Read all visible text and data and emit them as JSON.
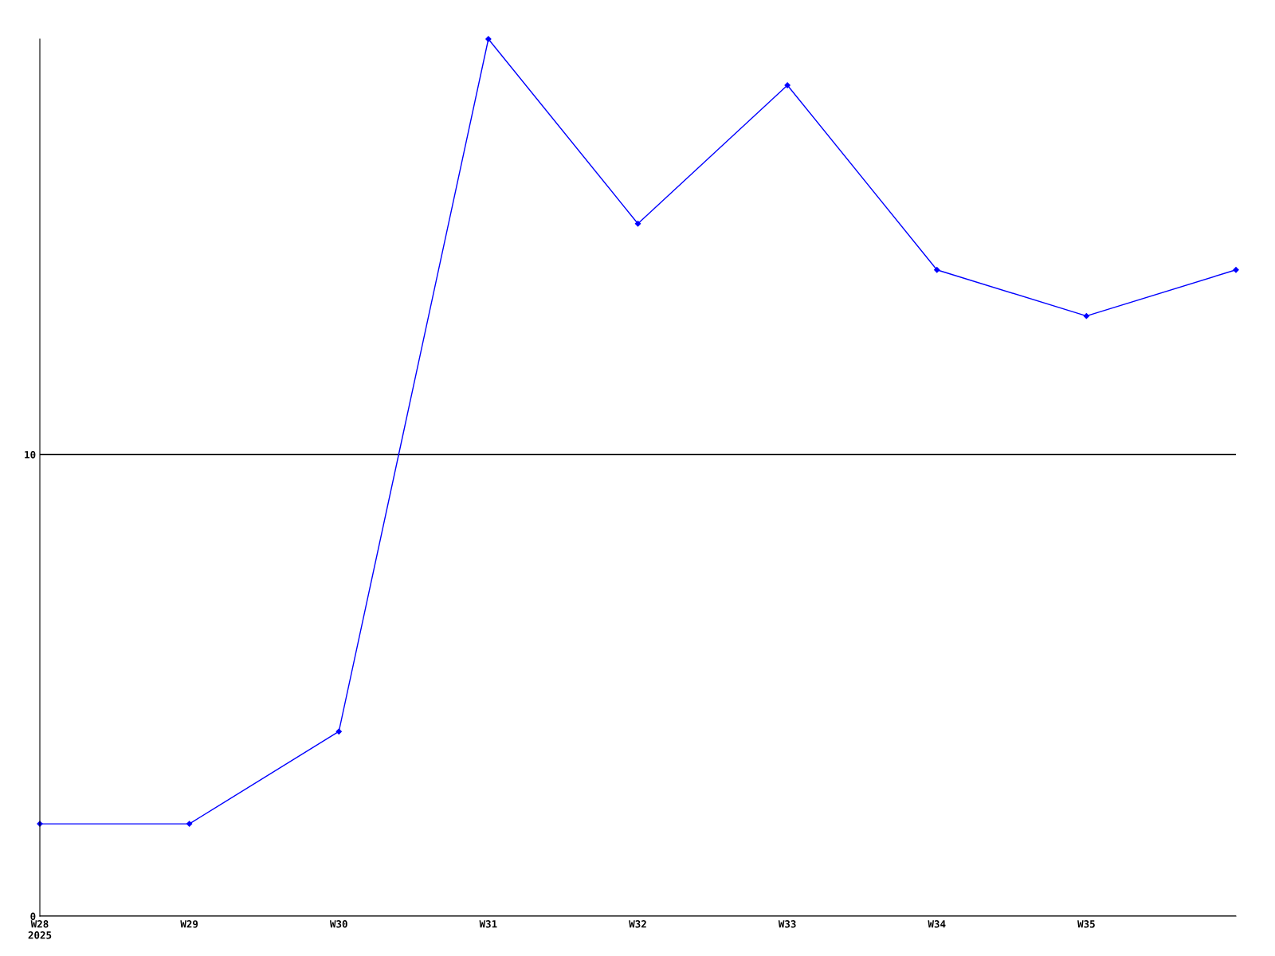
{
  "chart_data": {
    "type": "line",
    "categories": [
      "W28\n2025",
      "W29",
      "W30",
      "W31",
      "W32",
      "W33",
      "W34",
      "W35",
      null
    ],
    "series": [
      {
        "color": "#0000ff",
        "values": [
          2,
          2,
          4,
          19,
          15,
          18,
          14,
          13,
          14
        ]
      }
    ],
    "ylim": [
      0,
      19
    ],
    "yticks": [
      0,
      10
    ],
    "grid": "y",
    "marker": "diamond",
    "line_style": "solid",
    "legend": false
  }
}
